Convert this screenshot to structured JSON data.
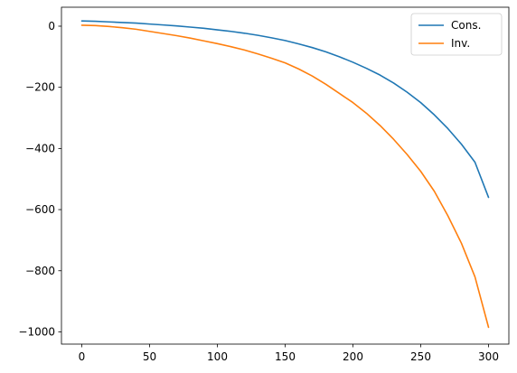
{
  "chart_data": {
    "type": "line",
    "title": "",
    "xlabel": "",
    "ylabel": "",
    "xlim": [
      -15,
      315
    ],
    "ylim": [
      -1040,
      62
    ],
    "x_ticks": [
      0,
      50,
      100,
      150,
      200,
      250,
      300
    ],
    "y_ticks": [
      0,
      -200,
      -400,
      -600,
      -800,
      -1000
    ],
    "x_tick_labels": [
      "0",
      "50",
      "100",
      "150",
      "200",
      "250",
      "300"
    ],
    "y_tick_labels": [
      "0",
      "−200",
      "−400",
      "−600",
      "−800",
      "−1000"
    ],
    "grid": false,
    "legend_position": "top-right",
    "x": [
      0,
      10,
      20,
      30,
      40,
      50,
      60,
      70,
      80,
      90,
      100,
      110,
      120,
      130,
      140,
      150,
      160,
      170,
      180,
      190,
      200,
      210,
      220,
      230,
      240,
      250,
      260,
      270,
      280,
      290,
      300
    ],
    "series": [
      {
        "name": "Cons.",
        "color": "#1f77b4",
        "values": [
          17,
          16,
          14,
          12,
          10,
          7,
          4,
          1,
          -3,
          -7,
          -12,
          -17,
          -23,
          -30,
          -38,
          -47,
          -58,
          -70,
          -84,
          -100,
          -118,
          -138,
          -160,
          -186,
          -216,
          -250,
          -290,
          -335,
          -386,
          -445,
          -560
        ]
      },
      {
        "name": "Inv.",
        "color": "#ff7f0e",
        "values": [
          3,
          2,
          -1,
          -5,
          -10,
          -17,
          -24,
          -31,
          -39,
          -48,
          -57,
          -67,
          -78,
          -91,
          -105,
          -120,
          -140,
          -163,
          -190,
          -220,
          -250,
          -285,
          -325,
          -370,
          -420,
          -475,
          -540,
          -620,
          -710,
          -820,
          -985
        ]
      }
    ]
  }
}
